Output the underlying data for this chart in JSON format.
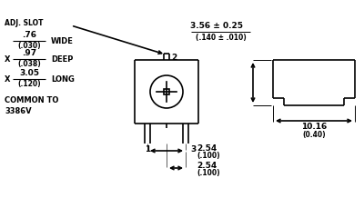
{
  "bg_color": "#ffffff",
  "line_color": "#000000",
  "text_color": "#000000",
  "fig_width": 4.0,
  "fig_height": 2.18,
  "dpi": 100,
  "lw": 1.2,
  "labels": {
    "adj_slot": "ADJ. SLOT",
    "pin1": "1",
    "pin2": "2",
    "pin3": "3",
    "wide_top": ".76",
    "wide_bot": "(.030)",
    "wide_label": "WIDE",
    "deep_x": "X",
    "deep_top": ".97",
    "deep_bot": "(.038)",
    "deep_label": "DEEP",
    "long_x": "X",
    "long_top": "3.05",
    "long_bot": "(.120)",
    "long_label": "LONG",
    "common": "COMMON TO\n3386V",
    "dim_top_a": "3.56 ± 0.25",
    "dim_top_b": "(.140 ± .010)",
    "dim_h1_a": "2.54",
    "dim_h1_b": "(.100)",
    "dim_h2_a": "2.54",
    "dim_h2_b": "(.100)",
    "dim_w_a": "10.16",
    "dim_w_b": "(0.40)"
  }
}
